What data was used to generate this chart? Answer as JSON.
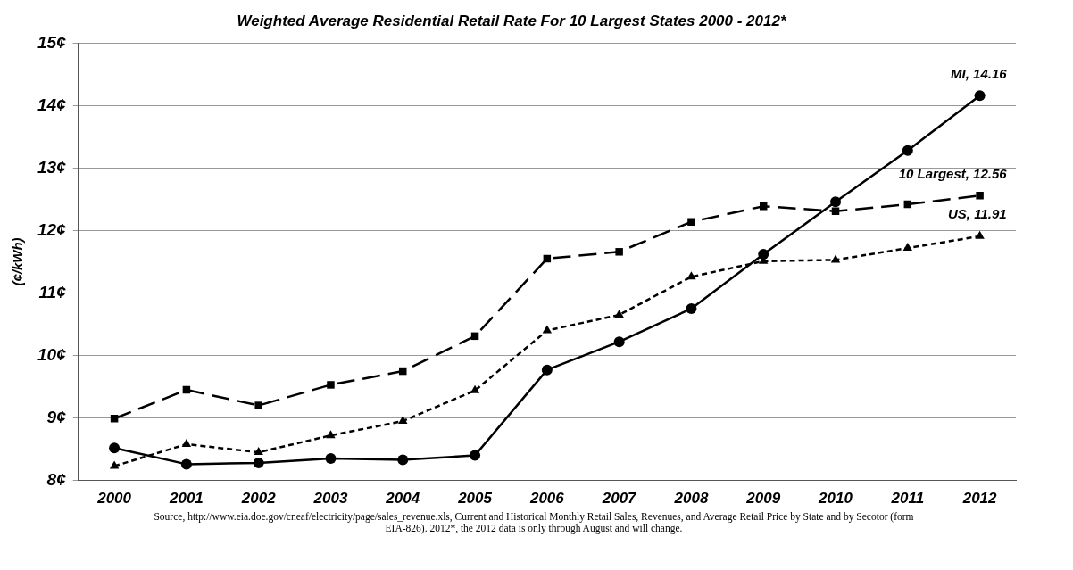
{
  "chart_data": {
    "type": "line",
    "title": "Weighted Average Residential Retail Rate For 10 Largest States 2000 - 2012*",
    "ylabel": "(¢/kWh)",
    "categories": [
      "2000",
      "2001",
      "2002",
      "2003",
      "2004",
      "2005",
      "2006",
      "2007",
      "2008",
      "2009",
      "2010",
      "2011",
      "2012"
    ],
    "series": [
      {
        "color": "#000000",
        "marker": "circle",
        "line_style": "solid",
        "values": [
          8.52,
          8.26,
          8.28,
          8.35,
          8.33,
          8.4,
          9.77,
          10.22,
          10.75,
          11.62,
          12.46,
          13.28,
          14.16
        ]
      },
      {
        "color": "#000000",
        "marker": "square",
        "line_style": "dashed",
        "values": [
          8.99,
          9.45,
          9.2,
          9.53,
          9.75,
          10.31,
          11.55,
          11.66,
          12.14,
          12.39,
          12.31,
          12.42,
          12.56
        ]
      },
      {
        "color": "#000000",
        "marker": "triangle",
        "line_style": "dotted",
        "values": [
          8.23,
          8.58,
          8.45,
          8.72,
          8.95,
          9.44,
          10.4,
          10.65,
          11.26,
          11.51,
          11.53,
          11.72,
          11.91
        ]
      }
    ],
    "ylim": [
      8,
      15
    ],
    "yticks": [
      {
        "value": 8,
        "label": "8¢"
      },
      {
        "value": 9,
        "label": "9¢"
      },
      {
        "value": 10,
        "label": "10¢"
      },
      {
        "value": 11,
        "label": "11¢"
      },
      {
        "value": 12,
        "label": "12¢"
      },
      {
        "value": 13,
        "label": "13¢"
      },
      {
        "value": 14,
        "label": "14¢"
      },
      {
        "value": 15,
        "label": "15¢"
      }
    ],
    "grid": "y",
    "legend": false,
    "annotations": [
      {
        "text": "MI, 14.16",
        "x": "2012",
        "y": 14.16
      },
      {
        "text": "10 Largest, 12.56",
        "x": "2012",
        "y": 12.56
      },
      {
        "text": "US, 11.91",
        "x": "2012",
        "y": 11.91
      },
      "Source, http://www.eia.doe.gov/cneaf/electricity/page/sales_revenue.xls, Current and Historical Monthly Retail Sales, Revenues, and Average Retail Price by State and by Secotor (form EIA-826). 2012*, the 2012 data is only through August and will change."
    ]
  }
}
